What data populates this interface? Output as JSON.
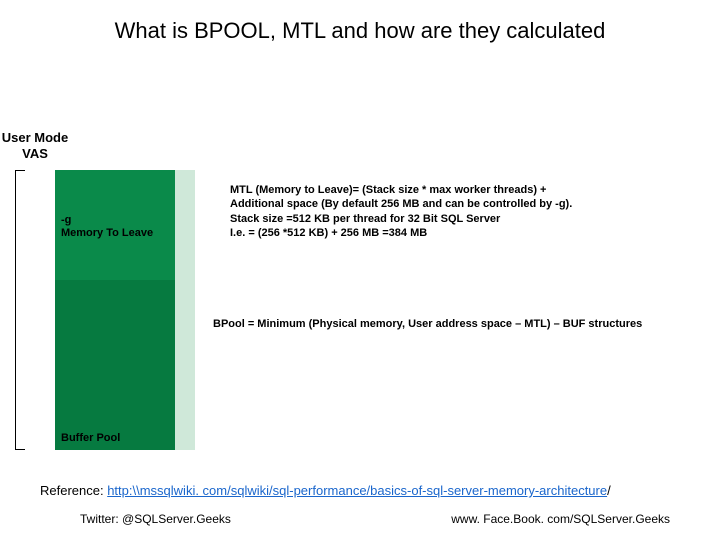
{
  "title": "What is BPOOL, MTL and how are they calculated",
  "diagram": {
    "vas_label": "User Mode\nVAS",
    "mtl_block": {
      "line1": "-g",
      "line2": "Memory To Leave",
      "bg_color": "#0a8a4a",
      "edge_color": "#cfe8d9"
    },
    "bpool_block": {
      "label": "Buffer Pool",
      "bg_color": "#067a40",
      "edge_color": "#cfe8d9"
    }
  },
  "mtl_text": {
    "l1": "MTL (Memory to Leave)= (Stack size * max worker threads) +",
    "l2": "Additional space (By default 256 MB and can be controlled by -g).",
    "l3": "Stack size =512 KB per thread for 32 Bit SQL Server",
    "l4": "I.e. = (256 *512 KB) + 256 MB =384 MB"
  },
  "bpool_text": "BPool = Minimum (Physical memory, User address space – MTL) – BUF structures",
  "reference": {
    "prefix": "Reference: ",
    "link_text": "http:\\\\mssqlwiki. com/sqlwiki/sql-performance/basics-of-sql-server-memory-architecture",
    "suffix": "/"
  },
  "footer": {
    "left": "Twitter: @SQLServer.Geeks",
    "right": "www. Face.Book. com/SQLServer.Geeks"
  }
}
